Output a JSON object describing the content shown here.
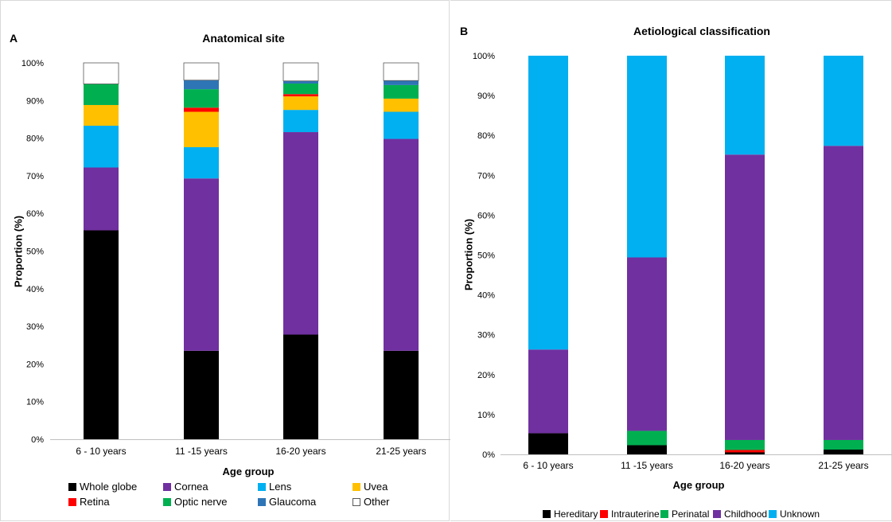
{
  "chart_data": [
    {
      "type": "bar",
      "stacked": true,
      "panel_letter": "A",
      "title": "Anatomical site",
      "xlabel": "Age group",
      "ylabel": "Proportion (%)",
      "ylim": [
        0,
        100
      ],
      "yticks": [
        "0%",
        "10%",
        "20%",
        "30%",
        "40%",
        "50%",
        "60%",
        "70%",
        "80%",
        "90%",
        "100%"
      ],
      "grid": false,
      "legend_position": "bottom",
      "categories": [
        "6 - 10 years",
        "11 -15 years",
        "16-20 years",
        "21-25 years"
      ],
      "series": [
        {
          "name": "Whole globe",
          "color": "#000000",
          "values": [
            55.5,
            23.5,
            27.8,
            23.5
          ]
        },
        {
          "name": "Cornea",
          "color": "#7030a0",
          "values": [
            16.7,
            45.8,
            53.8,
            56.3
          ]
        },
        {
          "name": "Lens",
          "color": "#00b0f0",
          "values": [
            11.1,
            8.3,
            5.9,
            7.2
          ]
        },
        {
          "name": "Uvea",
          "color": "#ffc000",
          "values": [
            5.5,
            9.4,
            3.6,
            3.5
          ]
        },
        {
          "name": "Retina",
          "color": "#ff0000",
          "values": [
            0,
            1.1,
            0.6,
            0
          ]
        },
        {
          "name": "Optic nerve",
          "color": "#00b050",
          "values": [
            5.6,
            4.9,
            2.8,
            3.6
          ]
        },
        {
          "name": "Glaucoma",
          "color": "#2e75b6",
          "values": [
            0,
            2.4,
            0.7,
            1.2
          ]
        },
        {
          "name": "Other",
          "color": "#ffffff",
          "values": [
            5.6,
            4.6,
            4.8,
            4.7
          ]
        }
      ]
    },
    {
      "type": "bar",
      "stacked": true,
      "panel_letter": "B",
      "title": "Aetiological classification",
      "xlabel": "Age group",
      "ylabel": "Proportion (%)",
      "ylim": [
        0,
        100
      ],
      "yticks": [
        "0%",
        "10%",
        "20%",
        "30%",
        "40%",
        "50%",
        "60%",
        "70%",
        "80%",
        "90%",
        "100%"
      ],
      "grid": false,
      "legend_position": "bottom",
      "categories": [
        "6 - 10 years",
        "11 -15 years",
        "16-20 years",
        "21-25 years"
      ],
      "series": [
        {
          "name": "Hereditary",
          "color": "#000000",
          "values": [
            5.3,
            2.3,
            0.5,
            1.2
          ]
        },
        {
          "name": "Intrauterine",
          "color": "#ff0000",
          "values": [
            0,
            0,
            0.6,
            0
          ]
        },
        {
          "name": "Perinatal",
          "color": "#00b050",
          "values": [
            0,
            3.6,
            2.5,
            2.4
          ]
        },
        {
          "name": "Childhood",
          "color": "#7030a0",
          "values": [
            21.0,
            43.5,
            71.6,
            73.8
          ]
        },
        {
          "name": "Unknown",
          "color": "#00b0f0",
          "values": [
            73.7,
            50.6,
            24.8,
            22.6
          ]
        }
      ]
    }
  ]
}
